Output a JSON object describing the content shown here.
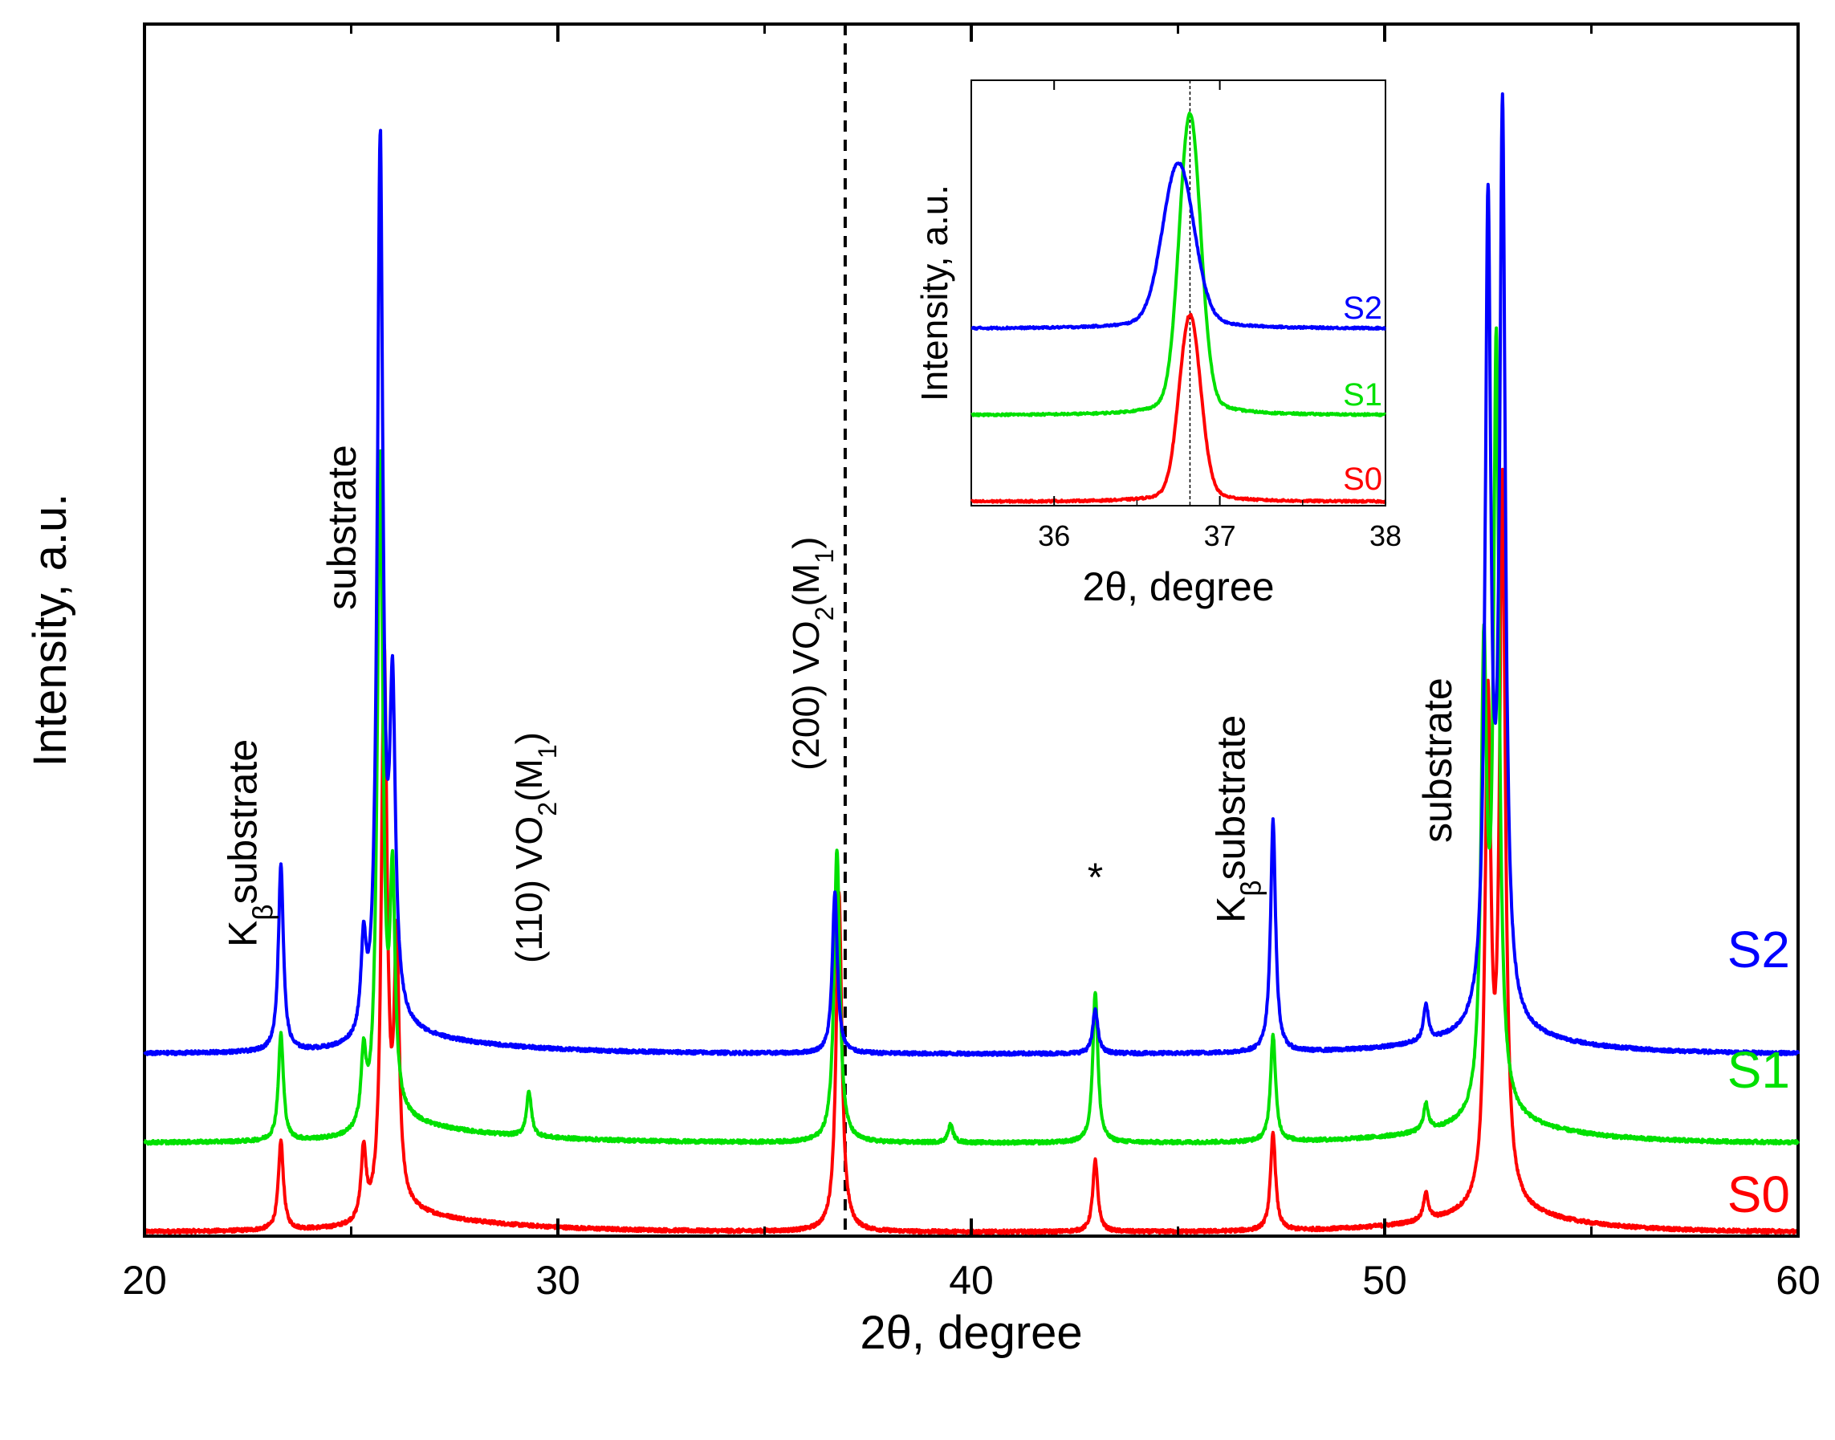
{
  "chart_data": [
    {
      "type": "line",
      "xlabel": "2θ, degree",
      "ylabel": "Intensity, a.u.",
      "xlim": [
        20,
        60
      ],
      "xticks": [
        20,
        30,
        40,
        50,
        60
      ],
      "yticks_shown": false,
      "reference_line_x": 36.95,
      "colors": {
        "S0": "#ff0000",
        "S1": "#00e000",
        "S2": "#0000ff"
      },
      "series": [
        {
          "name": "S0",
          "color": "#ff0000",
          "baseline": 0,
          "peaks": [
            {
              "x": 23.3,
              "height": 0.1
            },
            {
              "x": 25.3,
              "height": 0.08
            },
            {
              "x": 25.8,
              "height": 0.62
            },
            {
              "x": 26.1,
              "height": 0.28
            },
            {
              "x": 36.8,
              "height": 0.38
            },
            {
              "x": 43.0,
              "height": 0.08
            },
            {
              "x": 47.3,
              "height": 0.11
            },
            {
              "x": 51.0,
              "height": 0.03
            },
            {
              "x": 52.5,
              "height": 0.55
            },
            {
              "x": 52.85,
              "height": 0.8
            }
          ]
        },
        {
          "name": "S1",
          "color": "#00e000",
          "baseline": 0.1,
          "peaks": [
            {
              "x": 23.3,
              "height": 0.12
            },
            {
              "x": 25.3,
              "height": 0.08
            },
            {
              "x": 25.7,
              "height": 0.75
            },
            {
              "x": 26.0,
              "height": 0.25
            },
            {
              "x": 29.3,
              "height": 0.05
            },
            {
              "x": 36.75,
              "height": 0.33
            },
            {
              "x": 39.5,
              "height": 0.02
            },
            {
              "x": 43.0,
              "height": 0.17
            },
            {
              "x": 47.3,
              "height": 0.12
            },
            {
              "x": 51.0,
              "height": 0.03
            },
            {
              "x": 52.4,
              "height": 0.5
            },
            {
              "x": 52.7,
              "height": 0.85
            }
          ]
        },
        {
          "name": "S2",
          "color": "#0000ff",
          "baseline": 0.2,
          "peaks": [
            {
              "x": 23.3,
              "height": 0.21
            },
            {
              "x": 25.3,
              "height": 0.1
            },
            {
              "x": 25.7,
              "height": 1.0
            },
            {
              "x": 26.0,
              "height": 0.35
            },
            {
              "x": 36.7,
              "height": 0.18
            },
            {
              "x": 43.0,
              "height": 0.05
            },
            {
              "x": 47.3,
              "height": 0.26
            },
            {
              "x": 51.0,
              "height": 0.04
            },
            {
              "x": 52.5,
              "height": 0.9
            },
            {
              "x": 52.85,
              "height": 1.0
            }
          ]
        }
      ],
      "annotations": [
        {
          "text": "K",
          "sub": "β",
          "rest": "substrate",
          "x": 22.4
        },
        {
          "text": "substrate",
          "sub": "",
          "rest": "",
          "x": 24.8
        },
        {
          "text": "(110) VO",
          "sub": "2",
          "rest": "(M",
          "sub2": "1",
          "close": ")",
          "x": 29.3
        },
        {
          "text": "(200) VO",
          "sub": "2",
          "rest": "(M",
          "sub2": "1",
          "close": ")",
          "x": 36.0
        },
        {
          "text": "*",
          "sub": "",
          "rest": "",
          "x": 43.0
        },
        {
          "text": "K",
          "sub": "β",
          "rest": "substrate",
          "x": 46.3
        },
        {
          "text": "substrate",
          "sub": "",
          "rest": "",
          "x": 51.3
        }
      ]
    },
    {
      "type": "line",
      "title": "",
      "xlabel": "2θ, degree",
      "ylabel": "Intensity, a.u.",
      "xlim": [
        35.5,
        38
      ],
      "xticks": [
        36,
        37,
        38
      ],
      "reference_line_x": 36.82,
      "series": [
        {
          "name": "S0",
          "color": "#ff0000",
          "baseline": 0,
          "peak_x": 36.82,
          "peak_height": 0.44
        },
        {
          "name": "S1",
          "color": "#00e000",
          "baseline": 0.22,
          "peak_x": 36.82,
          "peak_height": 0.71
        },
        {
          "name": "S2",
          "color": "#0000ff",
          "baseline": 0.44,
          "peak_x": 36.75,
          "peak_height": 0.39
        }
      ]
    }
  ]
}
